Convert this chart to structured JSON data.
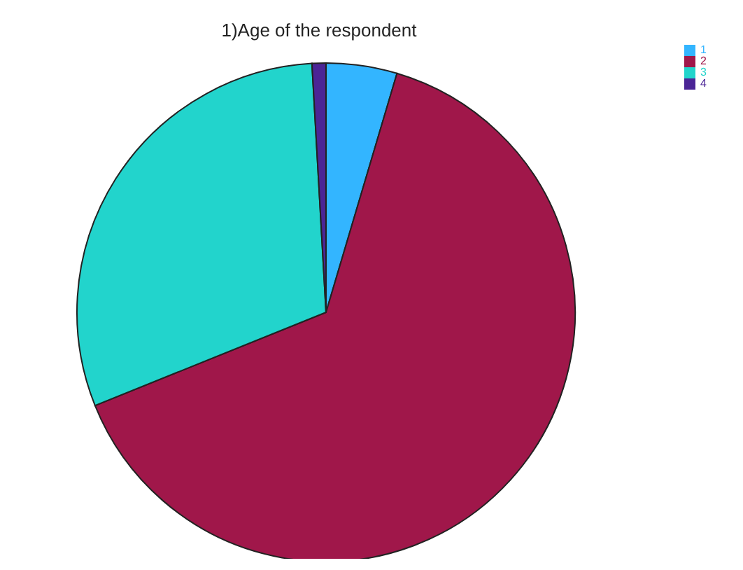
{
  "chart_data": {
    "type": "pie",
    "title": "1)Age of the respondent",
    "categories": [
      "1",
      "2",
      "3",
      "4"
    ],
    "values": [
      4.6,
      64.3,
      30.2,
      0.9
    ],
    "colors": [
      "#33b5ff",
      "#a0174a",
      "#22d4cc",
      "#4b2596"
    ],
    "legend": "top right"
  }
}
